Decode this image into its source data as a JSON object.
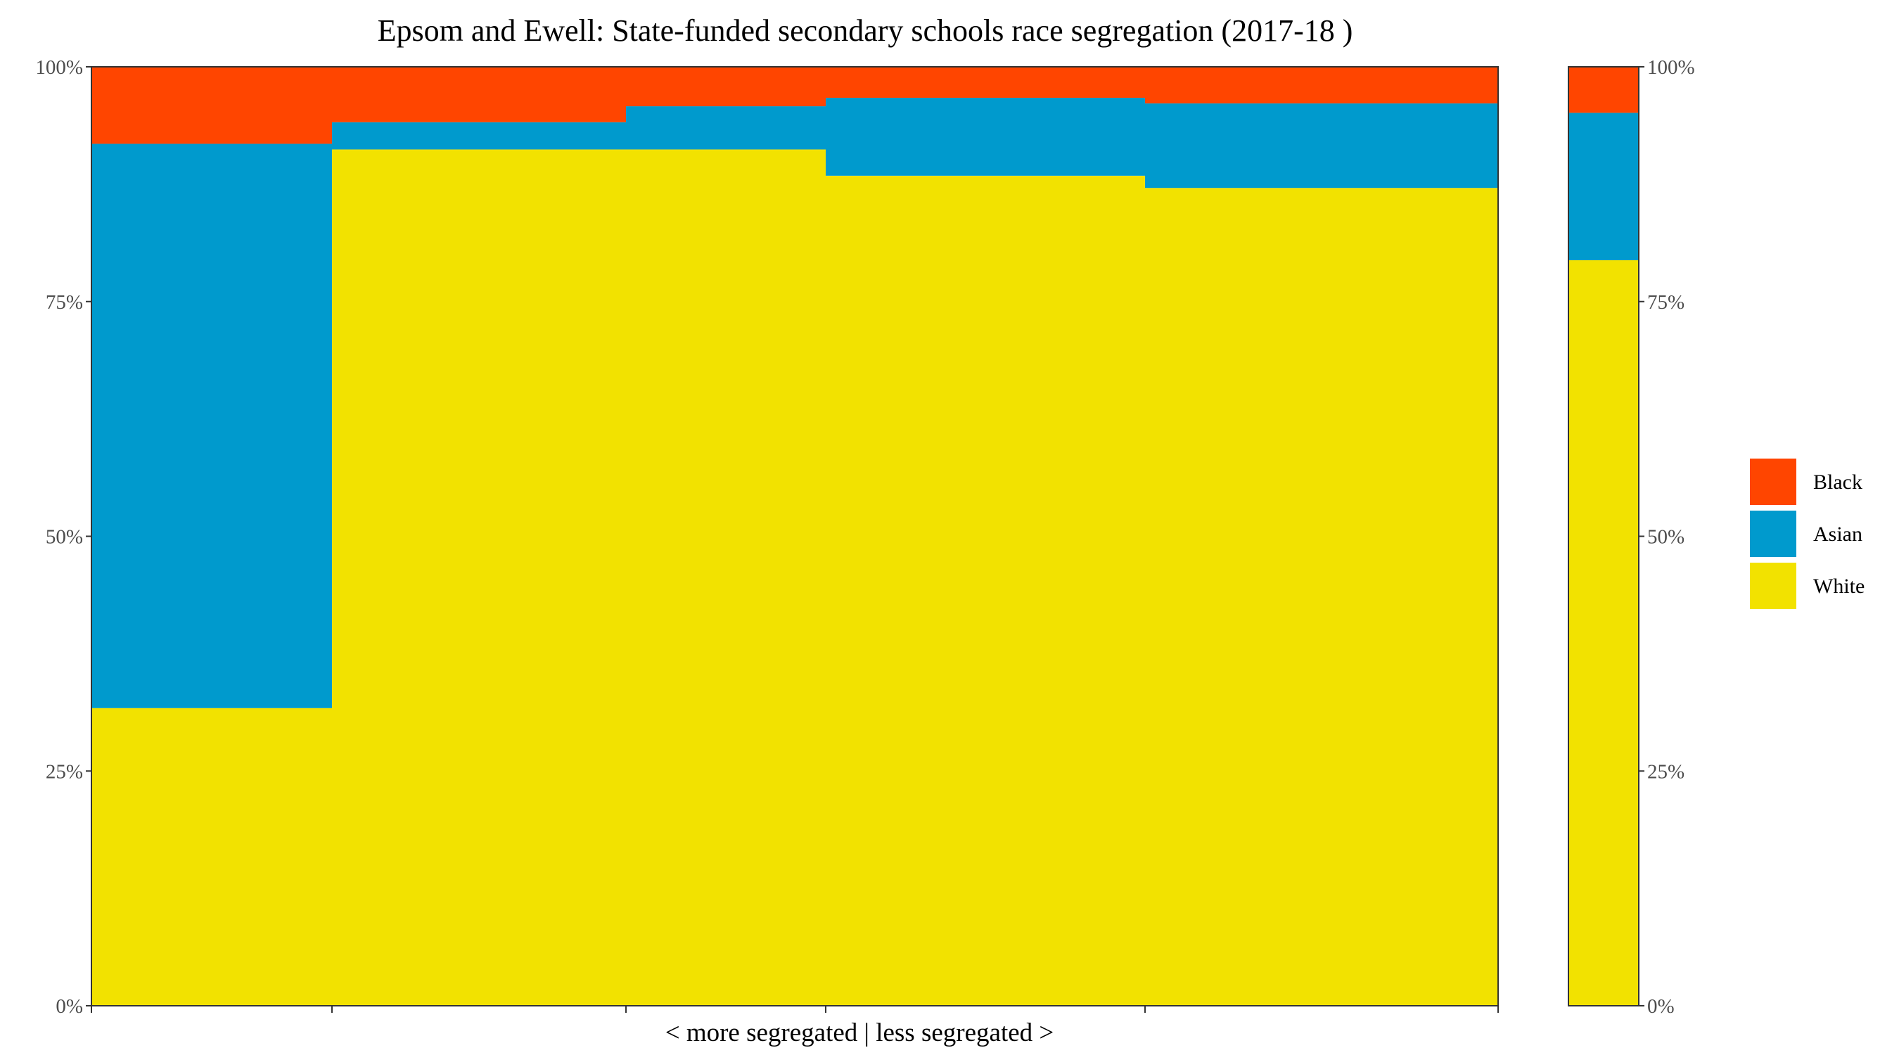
{
  "chart_data": {
    "type": "bar",
    "subtype": "stacked-variable-width (mosaic)",
    "title": "Epsom and Ewell: State-funded secondary schools race segregation (2017-18 )",
    "xlabel": "< more segregated | less segregated >",
    "ylabel": "",
    "ylim": [
      0,
      1
    ],
    "y_tick_labels": [
      "0%",
      "25%",
      "50%",
      "75%",
      "100%"
    ],
    "y_ticks": [
      0,
      0.25,
      0.5,
      0.75,
      1
    ],
    "secondary_y_axis": true,
    "grid": false,
    "legend_position": "right",
    "x_total": 1,
    "x_breaks": [
      0,
      0.171,
      0.38,
      0.522,
      0.749,
      1
    ],
    "stack_order": [
      "White",
      "Asian",
      "Black"
    ],
    "series": [
      {
        "name": "Black",
        "color": "#FF4500"
      },
      {
        "name": "Asian",
        "color": "#009ACD"
      },
      {
        "name": "White",
        "color": "#F2E200"
      }
    ],
    "schools": [
      {
        "x_start": 0,
        "x_end": 0.171,
        "shares": {
          "White": 0.317,
          "Asian": 0.601,
          "Black": 0.082
        }
      },
      {
        "x_start": 0.171,
        "x_end": 0.38,
        "shares": {
          "White": 0.912,
          "Asian": 0.029,
          "Black": 0.059
        }
      },
      {
        "x_start": 0.38,
        "x_end": 0.522,
        "shares": {
          "White": 0.912,
          "Asian": 0.046,
          "Black": 0.042
        }
      },
      {
        "x_start": 0.522,
        "x_end": 0.749,
        "shares": {
          "White": 0.884,
          "Asian": 0.083,
          "Black": 0.033
        }
      },
      {
        "x_start": 0.749,
        "x_end": 1,
        "shares": {
          "White": 0.871,
          "Asian": 0.09,
          "Black": 0.039
        }
      }
    ],
    "overall": {
      "shares": {
        "White": 0.794,
        "Asian": 0.157,
        "Black": 0.049
      }
    }
  }
}
